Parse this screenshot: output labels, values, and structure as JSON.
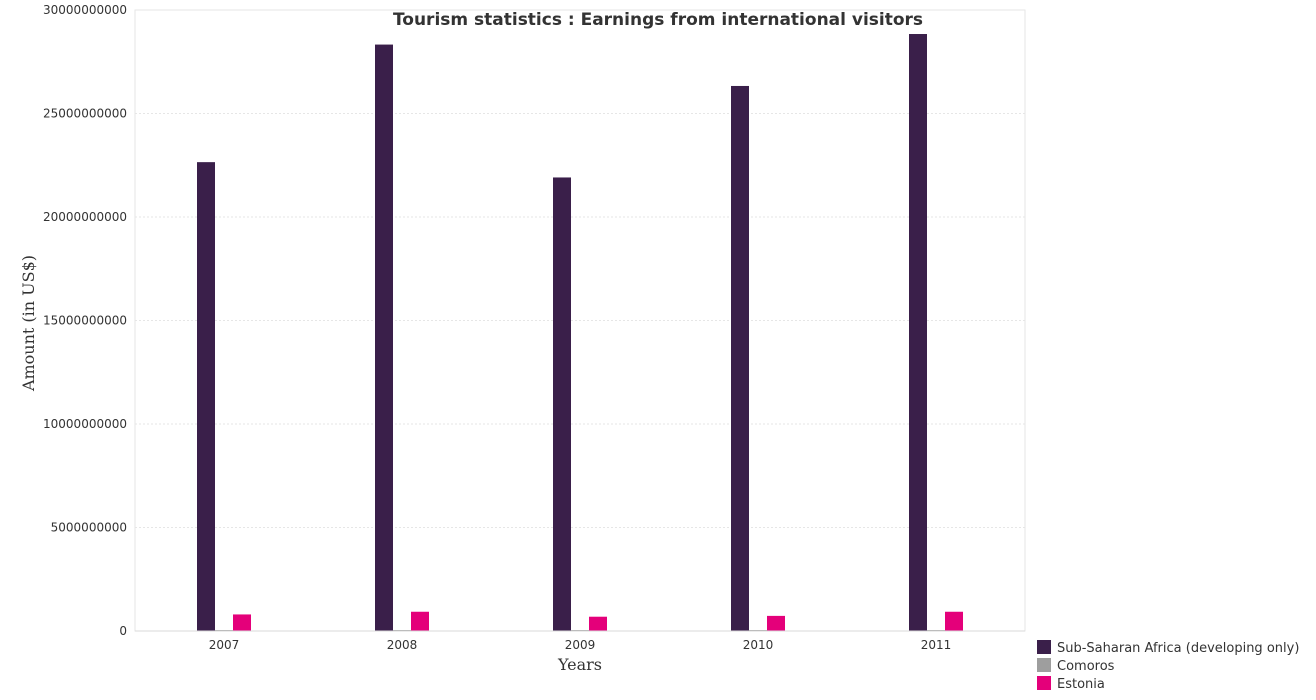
{
  "chart_data": {
    "type": "bar",
    "title": "Tourism statistics : Earnings from international visitors",
    "xlabel": "Years",
    "ylabel": "Amount (in US$)",
    "categories": [
      "2007",
      "2008",
      "2009",
      "2010",
      "2011"
    ],
    "ylim": [
      0,
      30000000000
    ],
    "yticks": [
      0,
      5000000000,
      10000000000,
      15000000000,
      20000000000,
      25000000000,
      30000000000
    ],
    "ytick_labels": [
      "0",
      "5000000000",
      "10000000000",
      "15000000000",
      "20000000000",
      "25000000000",
      "30000000000"
    ],
    "grid": true,
    "legend_position": "bottom-right",
    "series": [
      {
        "name": "Sub-Saharan Africa (developing only)",
        "color": "#3a1f4a",
        "values": [
          22650000000,
          28330000000,
          21910000000,
          26330000000,
          28840000000
        ]
      },
      {
        "name": "Comoros",
        "color": "#9e9e9e",
        "values": [
          31000000,
          38000000,
          32000000,
          35000000,
          42000000
        ]
      },
      {
        "name": "Estonia",
        "color": "#e4007a",
        "values": [
          800000000,
          930000000,
          690000000,
          730000000,
          930000000
        ]
      }
    ]
  }
}
